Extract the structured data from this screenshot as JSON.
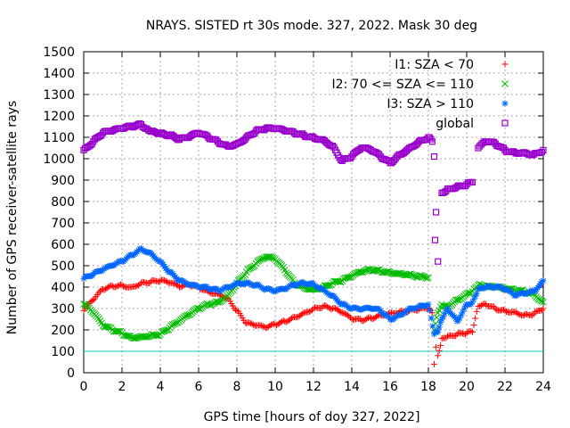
{
  "chart_data": {
    "type": "scatter",
    "title": "NRAYS. SISTED rt 30s mode. 327, 2022. Mask 30 deg",
    "xlabel": "GPS time [hours of doy 327, 2022]",
    "ylabel": "Number of GPS receiver-satellite rays",
    "xlim": [
      0,
      24
    ],
    "ylim": [
      0,
      1500
    ],
    "xticks": [
      "0",
      "2",
      "4",
      "6",
      "8",
      "10",
      "12",
      "14",
      "16",
      "18",
      "20",
      "22",
      "24"
    ],
    "yticks": [
      "0",
      "100",
      "200",
      "300",
      "400",
      "500",
      "600",
      "700",
      "800",
      "900",
      "1000",
      "1100",
      "1200",
      "1300",
      "1400",
      "1500"
    ],
    "grid": true,
    "legend_position": "top-right",
    "reference_line": {
      "y": 100,
      "color": "#00cccc"
    },
    "series": [
      {
        "name": "I1: SZA < 70",
        "color": "#ff0000",
        "marker": "+",
        "x": [
          0,
          0.5,
          1,
          1.5,
          2,
          2.5,
          3,
          3.5,
          4,
          4.5,
          5,
          5.5,
          6,
          6.5,
          7,
          7.5,
          8,
          8.5,
          9,
          9.5,
          10,
          10.5,
          11,
          11.5,
          12,
          12.5,
          13,
          13.5,
          14,
          14.5,
          15,
          15.5,
          16,
          16.5,
          17,
          17.5,
          18,
          18.2,
          18.3,
          18.4,
          18.5,
          18.7,
          19,
          19.5,
          20,
          20.3,
          20.6,
          21,
          21.5,
          22,
          22.5,
          23,
          23.5,
          24
        ],
        "y": [
          290,
          340,
          390,
          405,
          410,
          400,
          420,
          425,
          430,
          420,
          400,
          410,
          400,
          380,
          370,
          350,
          290,
          230,
          220,
          210,
          225,
          240,
          260,
          280,
          300,
          310,
          300,
          280,
          250,
          245,
          255,
          270,
          280,
          285,
          290,
          295,
          300,
          280,
          40,
          120,
          80,
          160,
          170,
          180,
          185,
          190,
          310,
          320,
          300,
          290,
          285,
          270,
          275,
          300
        ]
      },
      {
        "name": "I2: 70 <= SZA <= 110",
        "color": "#00bb00",
        "marker": "x",
        "x": [
          0,
          0.5,
          1,
          1.5,
          2,
          2.5,
          3,
          3.5,
          4,
          4.5,
          5,
          5.5,
          6,
          6.5,
          7,
          7.5,
          8,
          8.5,
          9,
          9.5,
          10,
          10.5,
          11,
          11.5,
          12,
          12.5,
          13,
          13.5,
          14,
          14.5,
          15,
          15.5,
          16,
          16.5,
          17,
          17.5,
          18,
          18.3,
          18.5,
          18.7,
          19,
          19.5,
          20,
          20.3,
          20.6,
          21,
          21.5,
          22,
          22.5,
          23,
          23.5,
          24
        ],
        "y": [
          320,
          280,
          220,
          200,
          185,
          165,
          170,
          175,
          180,
          210,
          240,
          270,
          300,
          320,
          330,
          360,
          420,
          470,
          510,
          540,
          530,
          480,
          420,
          400,
          390,
          400,
          420,
          430,
          450,
          470,
          480,
          475,
          470,
          465,
          460,
          450,
          445,
          200,
          280,
          320,
          310,
          340,
          370,
          380,
          410,
          400,
          400,
          390,
          385,
          380,
          370,
          330
        ]
      },
      {
        "name": "I3: SZA > 110",
        "color": "#0066ff",
        "marker": "*",
        "x": [
          0,
          0.5,
          1,
          1.5,
          2,
          2.5,
          3,
          3.5,
          4,
          4.5,
          5,
          5.5,
          6,
          6.5,
          7,
          7.5,
          8,
          8.5,
          9,
          9.5,
          10,
          10.5,
          11,
          11.5,
          12,
          12.5,
          13,
          13.5,
          14,
          14.5,
          15,
          15.5,
          16,
          16.5,
          17,
          17.5,
          18,
          18.3,
          18.5,
          18.7,
          19,
          19.5,
          20,
          20.3,
          20.6,
          21,
          21.5,
          22,
          22.5,
          23,
          23.5,
          24
        ],
        "y": [
          440,
          460,
          480,
          500,
          520,
          550,
          580,
          560,
          520,
          470,
          430,
          410,
          400,
          395,
          385,
          400,
          420,
          420,
          410,
          390,
          380,
          390,
          410,
          420,
          415,
          390,
          360,
          320,
          300,
          295,
          300,
          290,
          250,
          270,
          300,
          310,
          320,
          180,
          190,
          250,
          300,
          240,
          320,
          330,
          390,
          400,
          400,
          390,
          360,
          370,
          380,
          430
        ]
      },
      {
        "name": "global",
        "color": "#9900cc",
        "marker": "square",
        "x": [
          0,
          0.5,
          1,
          1.5,
          2,
          2.5,
          3,
          3.3,
          3.6,
          4,
          4.5,
          5,
          5.5,
          6,
          6.5,
          7,
          7.5,
          8,
          8.5,
          9,
          9.5,
          10,
          10.5,
          11,
          11.5,
          12,
          12.5,
          13,
          13.5,
          14,
          14.5,
          15,
          15.5,
          16,
          16.5,
          17,
          17.5,
          18,
          18.2,
          18.3,
          18.35,
          18.4,
          18.5,
          18.7,
          19,
          19.5,
          20,
          20.3,
          20.6,
          21,
          21.5,
          22,
          22.5,
          23,
          23.5,
          24
        ],
        "y": [
          1040,
          1080,
          1120,
          1130,
          1140,
          1150,
          1160,
          1140,
          1130,
          1120,
          1110,
          1090,
          1100,
          1120,
          1100,
          1080,
          1060,
          1070,
          1100,
          1130,
          1140,
          1140,
          1130,
          1120,
          1110,
          1100,
          1090,
          1060,
          990,
          1010,
          1050,
          1040,
          1010,
          980,
          1020,
          1050,
          1080,
          1100,
          1080,
          1010,
          620,
          750,
          520,
          840,
          860,
          870,
          880,
          890,
          1050,
          1080,
          1070,
          1040,
          1030,
          1030,
          1020,
          1040
        ]
      }
    ]
  }
}
